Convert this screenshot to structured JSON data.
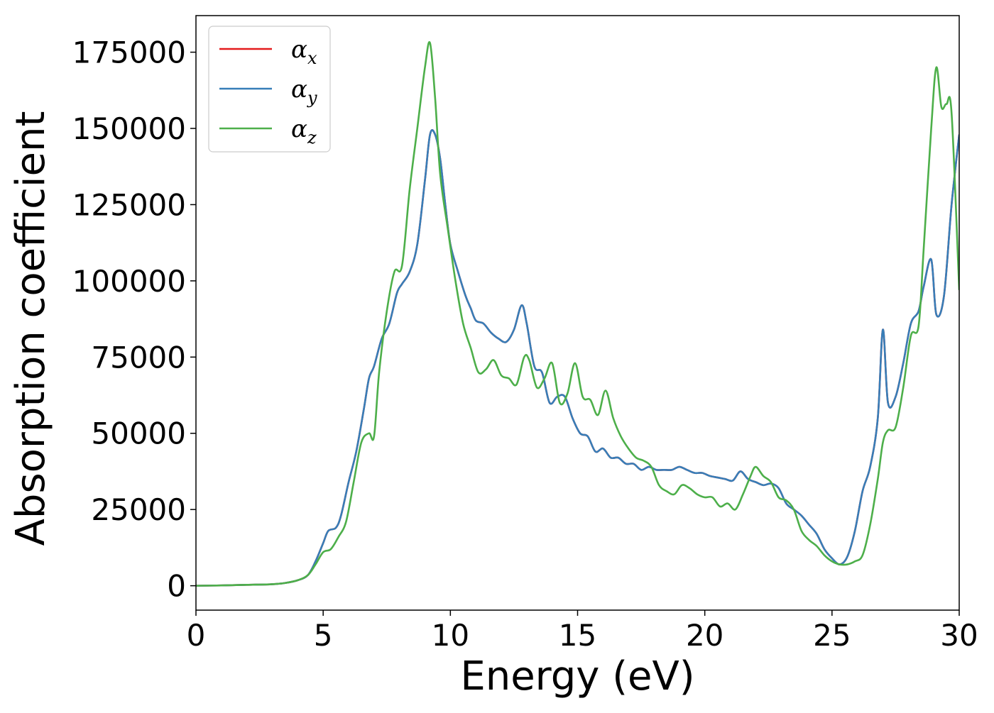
{
  "chart_data": {
    "type": "line",
    "xlabel": "Energy (eV)",
    "ylabel": "Absorption coefficient",
    "xlim": [
      0,
      30
    ],
    "ylim": [
      -8000,
      187000
    ],
    "grid": false,
    "legend_position": "top-left",
    "xticks": [
      0,
      5,
      10,
      15,
      20,
      25,
      30
    ],
    "yticks": [
      0,
      25000,
      50000,
      75000,
      100000,
      125000,
      150000,
      175000
    ],
    "series": [
      {
        "name": "αx",
        "symbol": "α",
        "subscript": "x",
        "color": "#e41a1c",
        "x": [
          0,
          1,
          2,
          3,
          3.5,
          4,
          4.4,
          4.7,
          5,
          5.2,
          5.5,
          5.7,
          6,
          6.3,
          6.6,
          6.8,
          7,
          7.3,
          7.6,
          7.9,
          8.1,
          8.4,
          8.7,
          9,
          9.2,
          9.4,
          9.6,
          9.8,
          10,
          10.3,
          10.6,
          10.8,
          11,
          11.3,
          11.6,
          11.9,
          12.2,
          12.5,
          12.8,
          13,
          13.3,
          13.6,
          13.9,
          14.2,
          14.5,
          14.8,
          15.1,
          15.4,
          15.7,
          16,
          16.3,
          16.6,
          16.9,
          17.2,
          17.5,
          17.8,
          18.1,
          18.4,
          18.7,
          19,
          19.3,
          19.6,
          19.9,
          20.2,
          20.5,
          20.8,
          21.1,
          21.4,
          21.7,
          22,
          22.3,
          22.6,
          22.9,
          23.2,
          23.5,
          23.8,
          24.1,
          24.4,
          24.7,
          25,
          25.3,
          25.6,
          25.9,
          26.2,
          26.5,
          26.8,
          27,
          27.2,
          27.5,
          27.8,
          28.1,
          28.4,
          28.6,
          28.9,
          29.1,
          29.4,
          29.7,
          30
        ],
        "y": [
          0,
          100,
          300,
          500,
          900,
          1800,
          3500,
          8000,
          14000,
          18000,
          19000,
          23000,
          34000,
          44000,
          58000,
          68000,
          72000,
          81000,
          86000,
          96000,
          99000,
          103000,
          112000,
          133000,
          148000,
          148000,
          140000,
          125000,
          112000,
          103000,
          95000,
          91000,
          87000,
          86000,
          83000,
          81000,
          80000,
          84000,
          92000,
          86000,
          72000,
          70000,
          60000,
          62000,
          62000,
          55000,
          50000,
          49000,
          44000,
          45000,
          42000,
          42000,
          40000,
          40000,
          38000,
          39000,
          38000,
          38000,
          38000,
          39000,
          38000,
          37000,
          37000,
          36000,
          35500,
          35000,
          34500,
          37500,
          35000,
          34000,
          33000,
          33500,
          32000,
          27000,
          25000,
          23000,
          20000,
          17000,
          12000,
          9000,
          7000,
          9500,
          18000,
          31000,
          39000,
          55000,
          84000,
          60000,
          62000,
          73000,
          86000,
          90000,
          98000,
          107000,
          89000,
          95000,
          125000,
          148000
        ]
      },
      {
        "name": "αy",
        "symbol": "α",
        "subscript": "y",
        "color": "#377eb8",
        "x": [
          0,
          1,
          2,
          3,
          3.5,
          4,
          4.4,
          4.7,
          5,
          5.2,
          5.5,
          5.7,
          6,
          6.3,
          6.6,
          6.8,
          7,
          7.3,
          7.6,
          7.9,
          8.1,
          8.4,
          8.7,
          9,
          9.2,
          9.4,
          9.6,
          9.8,
          10,
          10.3,
          10.6,
          10.8,
          11,
          11.3,
          11.6,
          11.9,
          12.2,
          12.5,
          12.8,
          13,
          13.3,
          13.6,
          13.9,
          14.2,
          14.5,
          14.8,
          15.1,
          15.4,
          15.7,
          16,
          16.3,
          16.6,
          16.9,
          17.2,
          17.5,
          17.8,
          18.1,
          18.4,
          18.7,
          19,
          19.3,
          19.6,
          19.9,
          20.2,
          20.5,
          20.8,
          21.1,
          21.4,
          21.7,
          22,
          22.3,
          22.6,
          22.9,
          23.2,
          23.5,
          23.8,
          24.1,
          24.4,
          24.7,
          25,
          25.3,
          25.6,
          25.9,
          26.2,
          26.5,
          26.8,
          27,
          27.2,
          27.5,
          27.8,
          28.1,
          28.4,
          28.6,
          28.9,
          29.1,
          29.4,
          29.7,
          30
        ],
        "y": [
          0,
          100,
          300,
          500,
          900,
          1800,
          3500,
          8000,
          14000,
          18000,
          19000,
          23000,
          34000,
          44000,
          58000,
          68000,
          72000,
          81000,
          86000,
          96000,
          99000,
          103000,
          112000,
          133000,
          148000,
          148000,
          140000,
          125000,
          112000,
          103000,
          95000,
          91000,
          87000,
          86000,
          83000,
          81000,
          80000,
          84000,
          92000,
          86000,
          72000,
          70000,
          60000,
          62000,
          62000,
          55000,
          50000,
          49000,
          44000,
          45000,
          42000,
          42000,
          40000,
          40000,
          38000,
          39000,
          38000,
          38000,
          38000,
          39000,
          38000,
          37000,
          37000,
          36000,
          35500,
          35000,
          34500,
          37500,
          35000,
          34000,
          33000,
          33500,
          32000,
          27000,
          25000,
          23000,
          20000,
          17000,
          12000,
          9000,
          7000,
          9500,
          18000,
          31000,
          39000,
          55000,
          84000,
          60000,
          62000,
          73000,
          86000,
          90000,
          98000,
          107000,
          89000,
          95000,
          125000,
          148000
        ]
      },
      {
        "name": "αz",
        "symbol": "α",
        "subscript": "z",
        "color": "#4daf4a",
        "x": [
          0,
          1,
          2,
          3,
          3.5,
          4,
          4.4,
          4.7,
          5,
          5.3,
          5.6,
          5.9,
          6.2,
          6.5,
          6.8,
          7,
          7.2,
          7.5,
          7.8,
          8.1,
          8.4,
          8.7,
          9,
          9.2,
          9.4,
          9.6,
          9.9,
          10.2,
          10.5,
          10.8,
          11.1,
          11.4,
          11.7,
          12,
          12.3,
          12.6,
          12.9,
          13.1,
          13.4,
          13.7,
          14,
          14.3,
          14.6,
          14.9,
          15.2,
          15.5,
          15.8,
          16.1,
          16.4,
          16.7,
          17,
          17.3,
          17.6,
          17.9,
          18.2,
          18.5,
          18.8,
          19.1,
          19.4,
          19.7,
          20,
          20.3,
          20.6,
          20.9,
          21.2,
          21.5,
          21.8,
          22,
          22.3,
          22.6,
          22.9,
          23.2,
          23.5,
          23.8,
          24.1,
          24.4,
          24.7,
          25,
          25.3,
          25.6,
          25.9,
          26.2,
          26.5,
          26.8,
          27,
          27.2,
          27.5,
          27.8,
          28.1,
          28.4,
          28.6,
          28.9,
          29.1,
          29.3,
          29.5,
          29.7,
          30
        ],
        "y": [
          0,
          100,
          300,
          500,
          900,
          1800,
          3500,
          7000,
          11000,
          12000,
          16000,
          21000,
          34000,
          47000,
          50000,
          49000,
          70000,
          90000,
          103000,
          105000,
          130000,
          150000,
          170000,
          178000,
          160000,
          135000,
          117000,
          100000,
          86000,
          78000,
          70000,
          71000,
          74000,
          69000,
          68000,
          66000,
          75000,
          74000,
          65000,
          68000,
          73000,
          60000,
          63000,
          73000,
          62000,
          61000,
          56000,
          64000,
          55000,
          49000,
          45000,
          42000,
          41000,
          39000,
          33000,
          31000,
          30000,
          33000,
          32000,
          30000,
          29000,
          29000,
          26000,
          27000,
          25000,
          30000,
          36000,
          39000,
          36000,
          34000,
          29000,
          28000,
          25000,
          18000,
          15000,
          13000,
          10000,
          8000,
          7000,
          7000,
          8000,
          10000,
          20000,
          35000,
          47000,
          51000,
          52000,
          65000,
          82000,
          85000,
          110000,
          150000,
          170000,
          157000,
          158000,
          155000,
          97000
        ]
      }
    ]
  }
}
